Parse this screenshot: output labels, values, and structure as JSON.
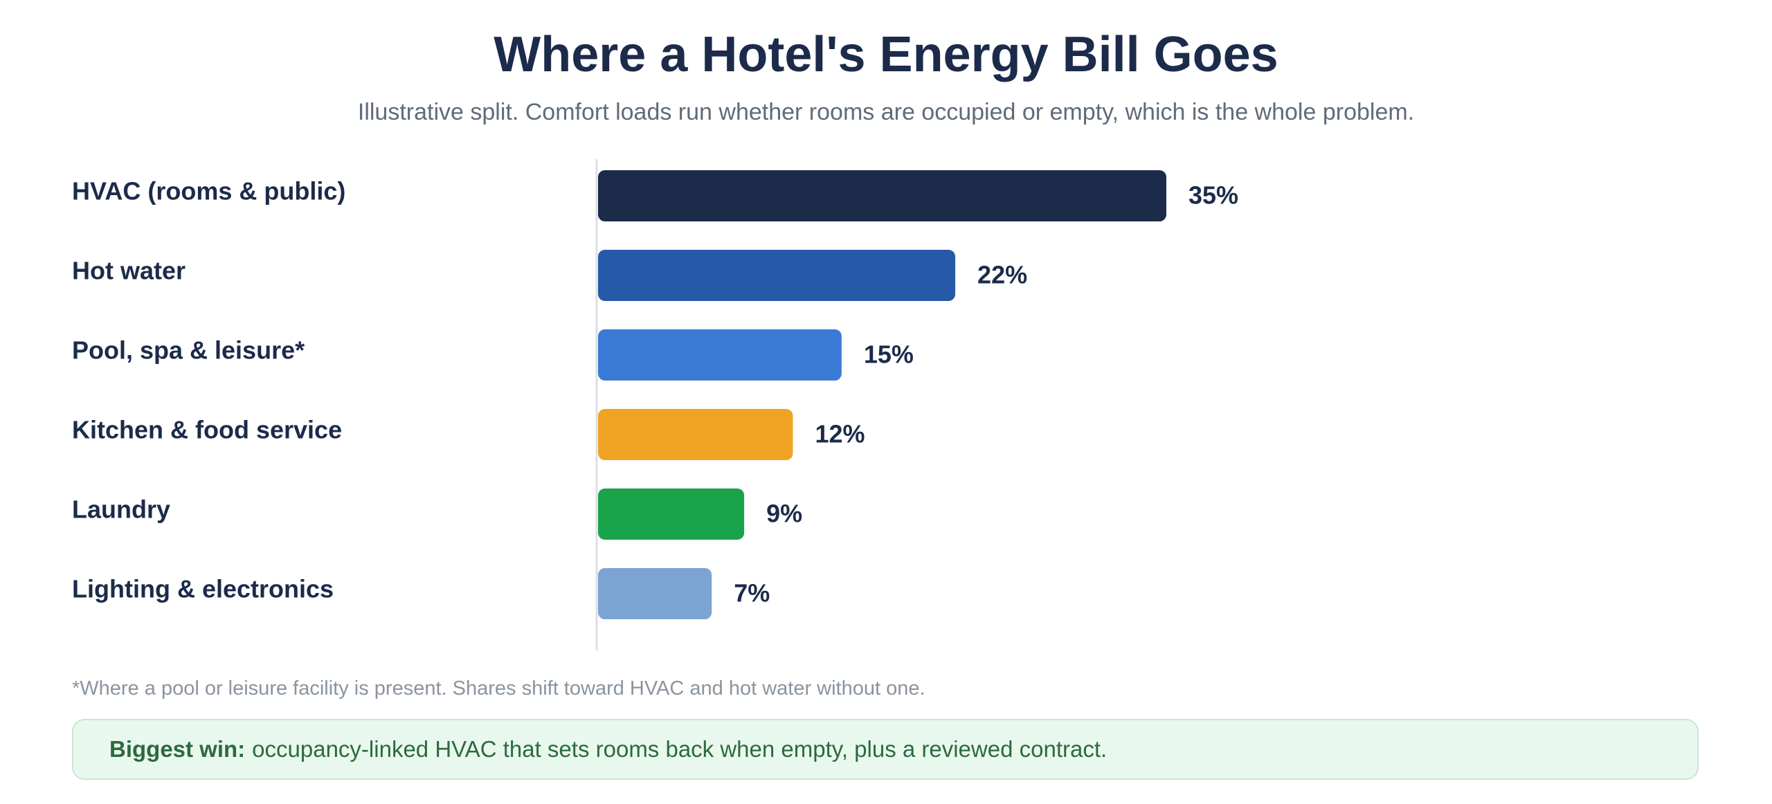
{
  "header": {
    "title": "Where a Hotel's Energy Bill Goes",
    "subtitle": "Illustrative split. Comfort loads run whether rooms are occupied or empty, which is the whole problem."
  },
  "chart_data": {
    "type": "bar",
    "orientation": "horizontal",
    "categories": [
      "HVAC (rooms & public)",
      "Hot water",
      "Pool, spa & leisure*",
      "Kitchen & food service",
      "Laundry",
      "Lighting & electronics"
    ],
    "values": [
      35,
      22,
      15,
      12,
      9,
      7
    ],
    "value_labels": [
      "35%",
      "22%",
      "15%",
      "12%",
      "9%",
      "7%"
    ],
    "colors": [
      "#1c2b4a",
      "#2659a8",
      "#3b7bd6",
      "#f0a323",
      "#1ba34b",
      "#7ba4d2"
    ],
    "unit": "%",
    "grid": false,
    "legend": "none"
  },
  "footnote": "*Where a pool or leisure facility is present. Shares shift toward HVAC and hot water without one.",
  "callout": {
    "strong": "Biggest win:",
    "text": "occupancy-linked HVAC that sets rooms back when empty, plus a reviewed contract."
  }
}
